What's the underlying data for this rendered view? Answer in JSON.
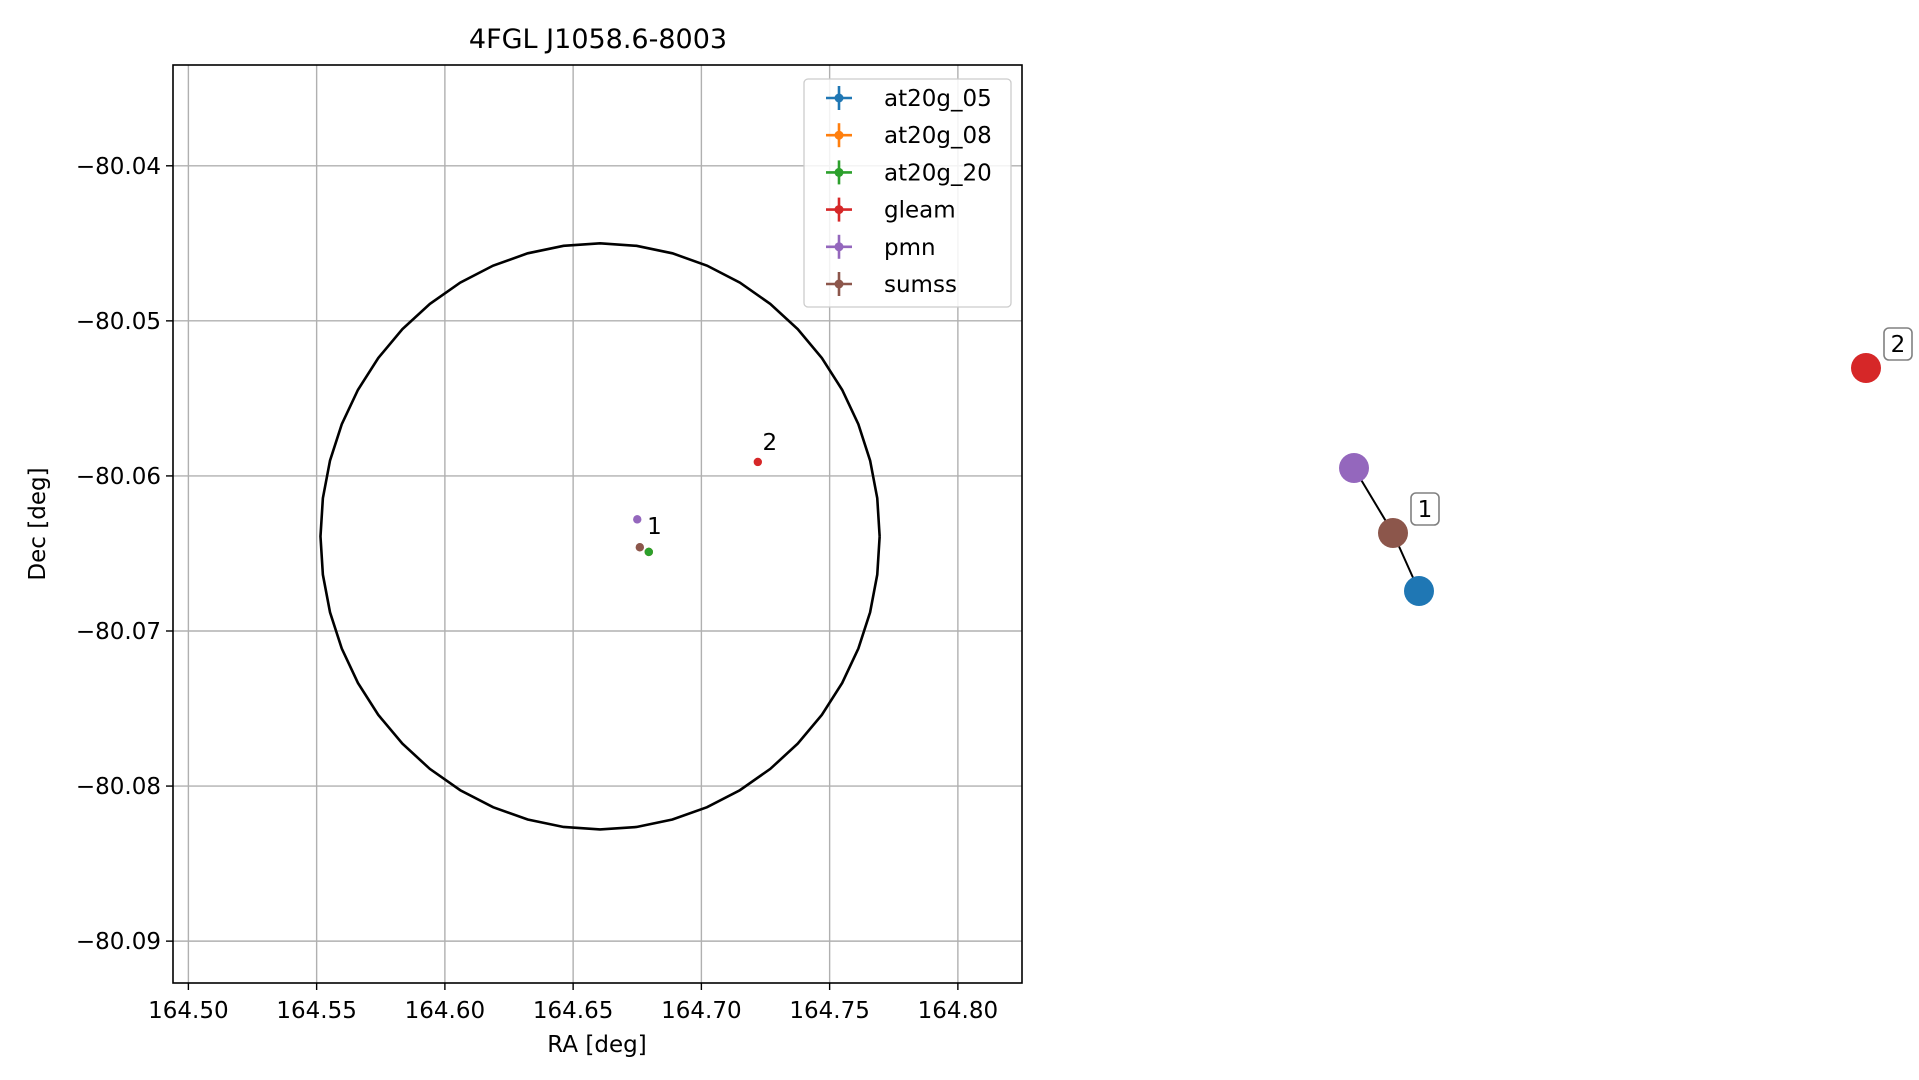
{
  "chart_data": [
    {
      "type": "scatter",
      "title": "4FGL J1058.6-8003",
      "xlabel": "RA [deg]",
      "ylabel": "Dec [deg]",
      "xlim": [
        164.494,
        164.825
      ],
      "ylim": [
        -80.0927,
        -80.0335
      ],
      "xticks": [
        164.5,
        164.55,
        164.6,
        164.65,
        164.7,
        164.75,
        164.8
      ],
      "xtick_labels": [
        "164.50",
        "164.55",
        "164.60",
        "164.65",
        "164.70",
        "164.75",
        "164.80"
      ],
      "yticks": [
        -80.04,
        -80.05,
        -80.06,
        -80.07,
        -80.08,
        -80.09
      ],
      "ytick_labels": [
        "−80.04",
        "−80.05",
        "−80.06",
        "−80.07",
        "−80.08",
        "−80.09"
      ],
      "grid": true,
      "legend_position": "top-right",
      "ellipse": {
        "ra_center": 164.6605,
        "dec_center": -80.0639,
        "ra_semi_axis": 0.109,
        "dec_semi_axis": 0.0189,
        "color": "#000000"
      },
      "series": [
        {
          "name": "at20g_05",
          "color": "#1f77b4",
          "points": [
            {
              "x": 164.6795,
              "y": -80.0649
            }
          ]
        },
        {
          "name": "at20g_08",
          "color": "#ff7f0e",
          "points": [
            {
              "x": 164.6795,
              "y": -80.0649
            }
          ]
        },
        {
          "name": "at20g_20",
          "color": "#2ca02c",
          "points": [
            {
              "x": 164.6795,
              "y": -80.0649
            }
          ]
        },
        {
          "name": "gleam",
          "color": "#d62728",
          "points": [
            {
              "x": 164.722,
              "y": -80.0591
            }
          ]
        },
        {
          "name": "pmn",
          "color": "#9467bd",
          "points": [
            {
              "x": 164.675,
              "y": -80.0628
            }
          ]
        },
        {
          "name": "sumss",
          "color": "#8c564b",
          "points": [
            {
              "x": 164.676,
              "y": -80.0646
            }
          ]
        }
      ],
      "point_labels": [
        {
          "text": "1",
          "x": 164.6765,
          "y": -80.064
        },
        {
          "text": "2",
          "x": 164.7215,
          "y": -80.0586
        }
      ]
    },
    {
      "type": "graph",
      "nodes": [
        {
          "color": "#9467bd"
        },
        {
          "color": "#8c564b",
          "label": "1"
        },
        {
          "color": "#1f77b4"
        },
        {
          "color": "#d62728",
          "label": "2"
        }
      ],
      "edges": [
        [
          0,
          1
        ],
        [
          1,
          2
        ]
      ]
    }
  ]
}
